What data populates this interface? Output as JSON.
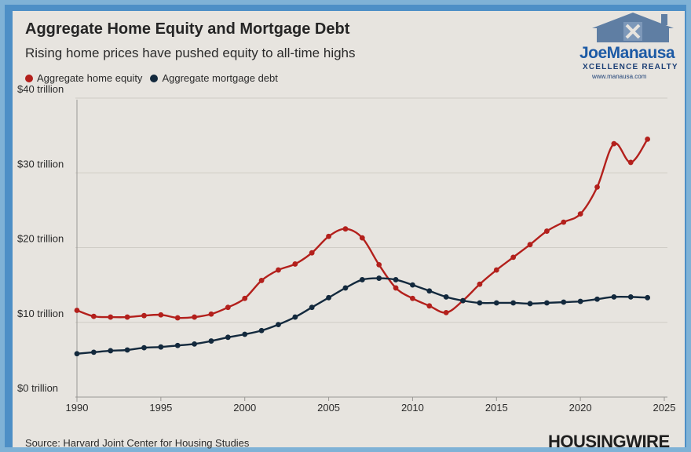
{
  "header": {
    "title": "Aggregate Home Equity and Mortgage Debt",
    "subtitle": "Rising home prices have pushed equity to all-time highs"
  },
  "logo": {
    "name": "JoeManausa",
    "tagline": "XCELLENCE REALTY",
    "url": "www.manausa.com"
  },
  "footer": {
    "source": "Source: Harvard Joint Center for Housing Studies",
    "brand": "HOUSINGWIRE"
  },
  "colors": {
    "equity": "#b3201c",
    "debt": "#13293d",
    "grid": "#cfccc6",
    "background": "#e7e4df"
  },
  "chart_data": {
    "type": "line",
    "title": "Aggregate Home Equity and Mortgage Debt",
    "subtitle": "Rising home prices have pushed equity to all-time highs",
    "xlim": [
      1990,
      2025
    ],
    "ylim": [
      0,
      40
    ],
    "x_ticks": [
      1990,
      1995,
      2000,
      2005,
      2010,
      2015,
      2020,
      2025
    ],
    "y_ticks": [
      {
        "value": 0,
        "label": "$0 trillion"
      },
      {
        "value": 10,
        "label": "$10 trillion"
      },
      {
        "value": 20,
        "label": "$20 trillion"
      },
      {
        "value": 30,
        "label": "$30 trillion"
      },
      {
        "value": 40,
        "label": "$40 trillion"
      }
    ],
    "grid": "horizontal",
    "legend_position": "top-left",
    "x": [
      1990,
      1991,
      1992,
      1993,
      1994,
      1995,
      1996,
      1997,
      1998,
      1999,
      2000,
      2001,
      2002,
      2003,
      2004,
      2005,
      2006,
      2007,
      2008,
      2009,
      2010,
      2011,
      2012,
      2013,
      2014,
      2015,
      2016,
      2017,
      2018,
      2019,
      2020,
      2021,
      2022,
      2023,
      2024
    ],
    "series": [
      {
        "name": "Aggregate home equity",
        "color": "#b3201c",
        "values": [
          11.6,
          10.8,
          10.7,
          10.7,
          10.9,
          11.0,
          10.6,
          10.7,
          11.1,
          12.0,
          13.2,
          15.6,
          17.0,
          17.8,
          19.3,
          21.5,
          22.5,
          21.3,
          17.7,
          14.6,
          13.2,
          12.2,
          11.3,
          12.9,
          15.1,
          17.0,
          18.7,
          20.4,
          22.2,
          23.4,
          24.5,
          28.1,
          33.9,
          31.4,
          34.5
        ]
      },
      {
        "name": "Aggregate mortgage debt",
        "color": "#13293d",
        "values": [
          5.8,
          6.0,
          6.2,
          6.3,
          6.6,
          6.7,
          6.9,
          7.1,
          7.5,
          8.0,
          8.4,
          8.9,
          9.7,
          10.7,
          12.0,
          13.3,
          14.6,
          15.7,
          15.9,
          15.7,
          15.0,
          14.2,
          13.4,
          12.9,
          12.6,
          12.6,
          12.6,
          12.5,
          12.6,
          12.7,
          12.8,
          13.1,
          13.4,
          13.4,
          13.3
        ]
      }
    ]
  }
}
